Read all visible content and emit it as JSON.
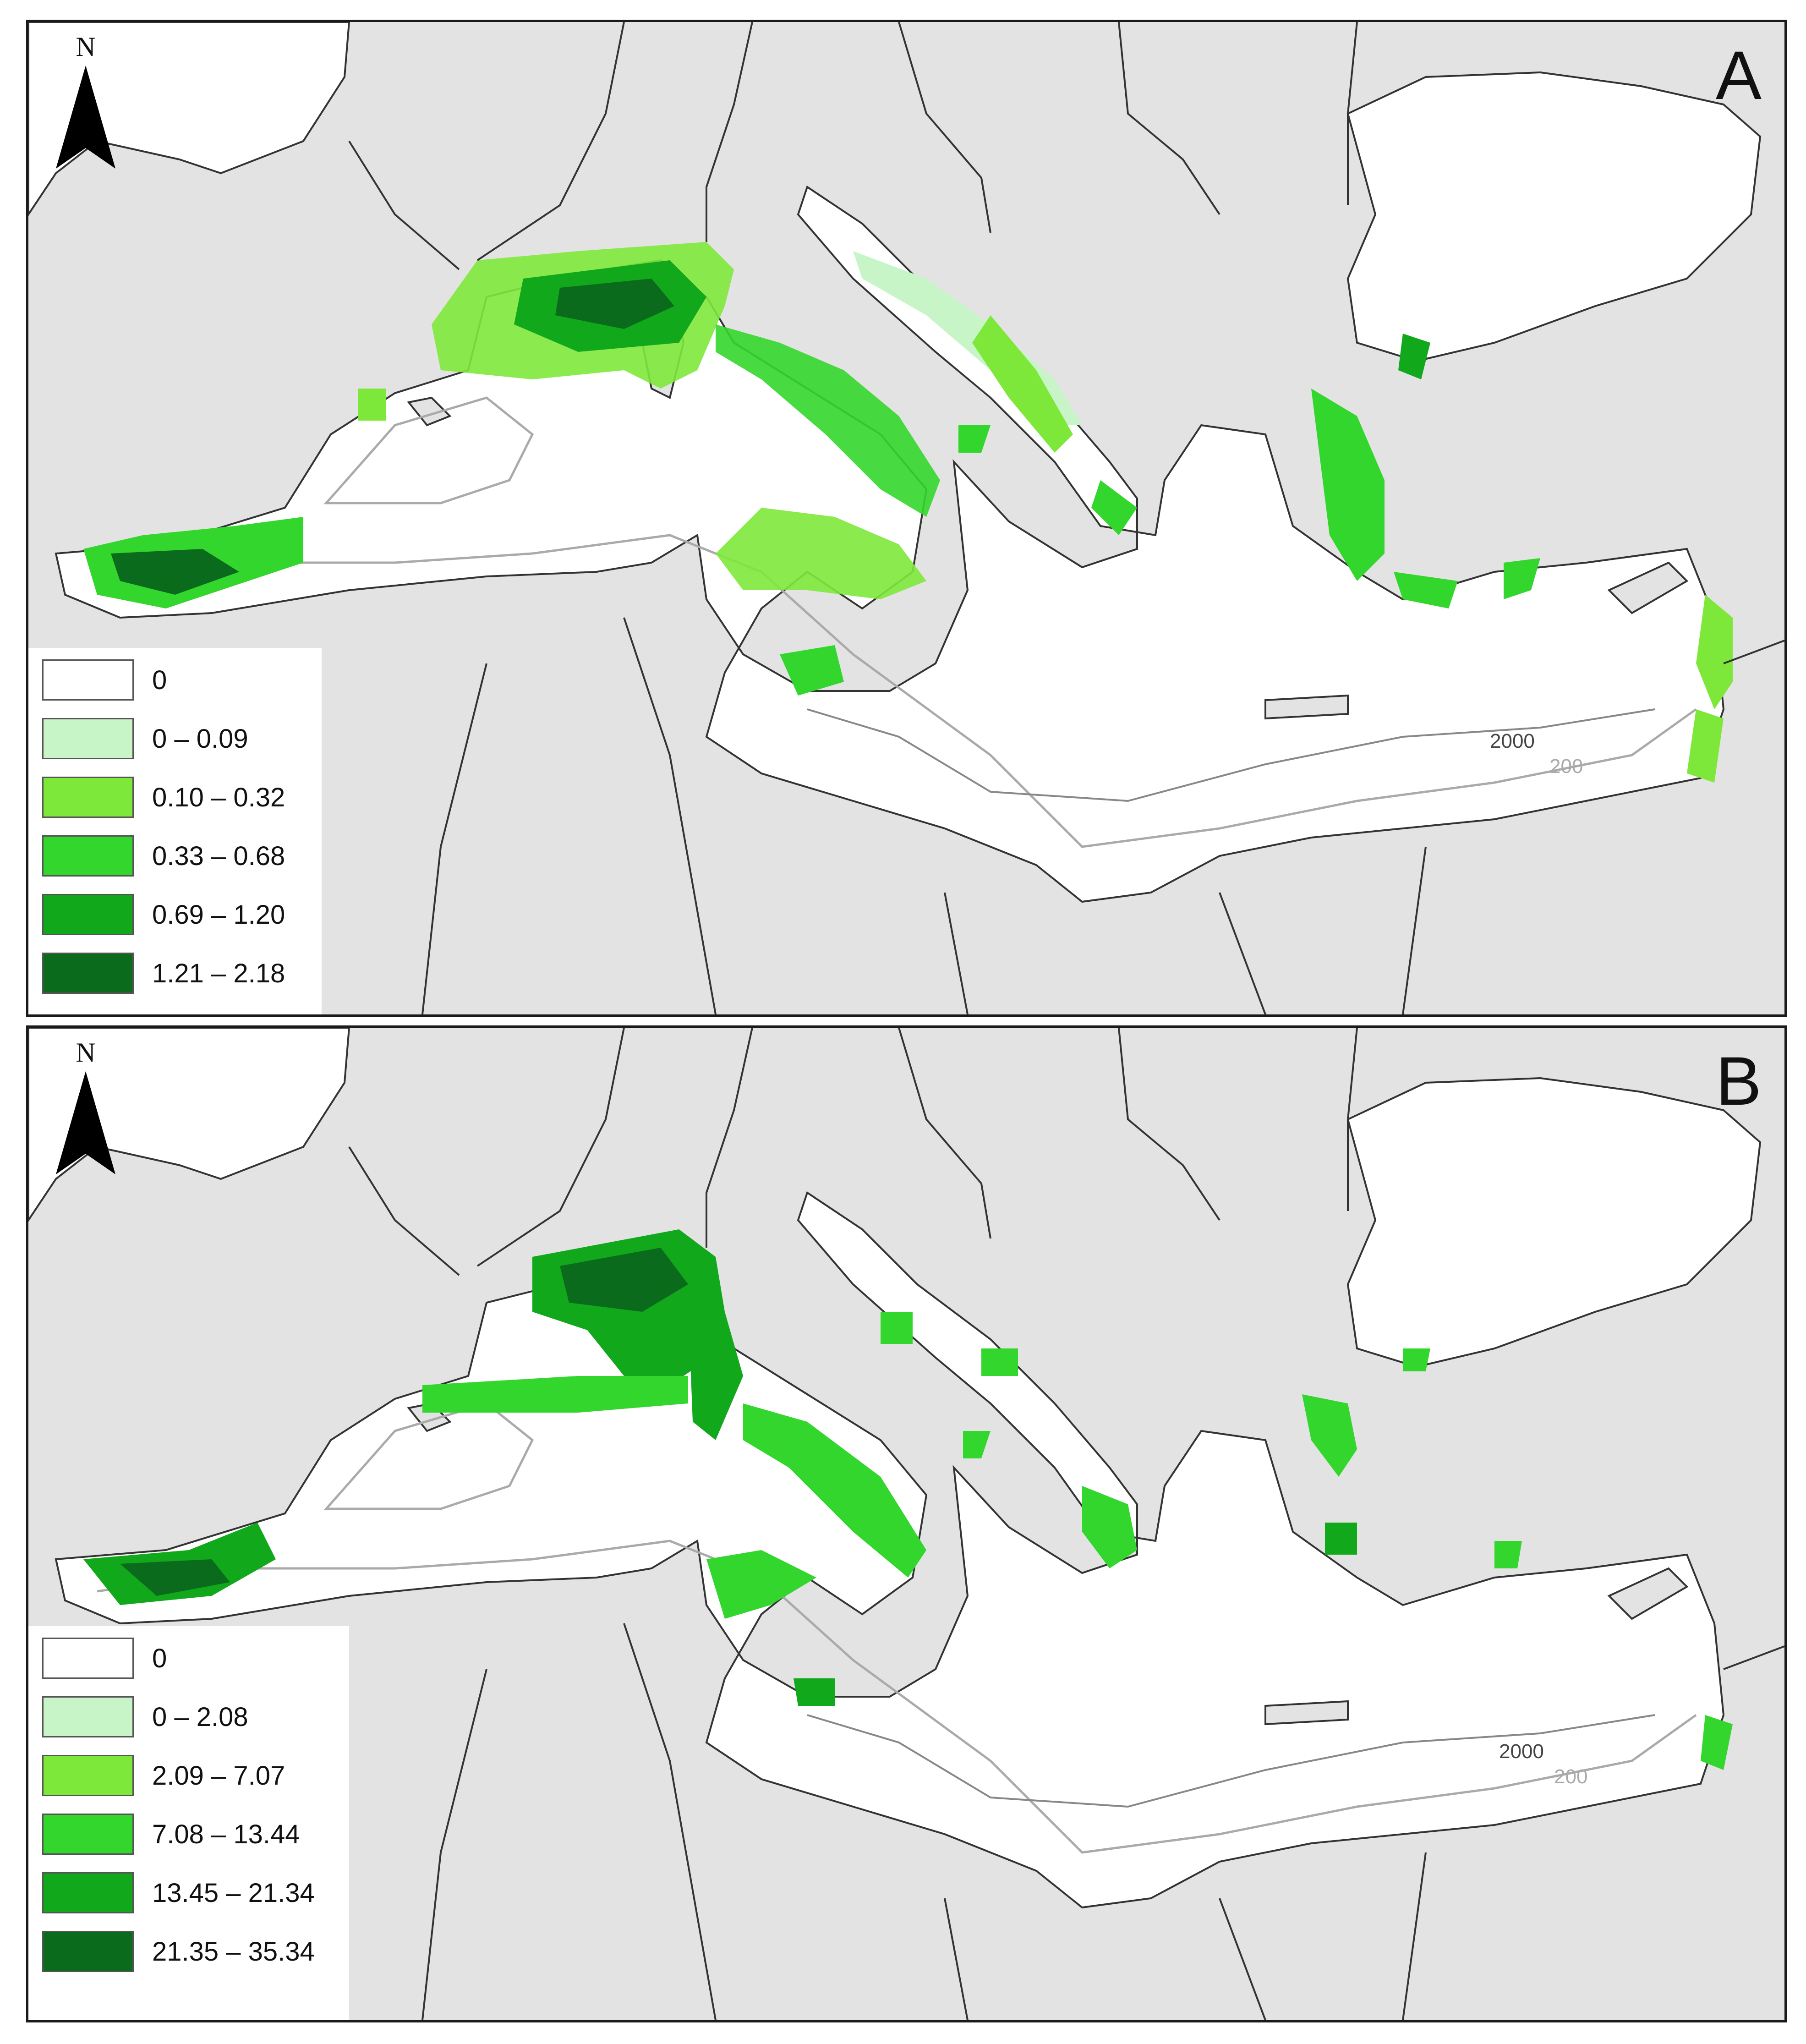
{
  "panels": [
    {
      "id": "A",
      "letter": "A",
      "north_label": "N",
      "legend": [
        {
          "label": "0",
          "color": "#ffffff"
        },
        {
          "label": "0 – 0.09",
          "color": "#c8f5c8"
        },
        {
          "label": "0.10 – 0.32",
          "color": "#7ee83a"
        },
        {
          "label": "0.33 – 0.68",
          "color": "#33d62c"
        },
        {
          "label": "0.69 – 1.20",
          "color": "#12a81b"
        },
        {
          "label": "1.21 – 2.18",
          "color": "#0a6b1c"
        }
      ],
      "contours": {
        "deep": "2000",
        "shelf": "200"
      }
    },
    {
      "id": "B",
      "letter": "B",
      "north_label": "N",
      "legend": [
        {
          "label": "0",
          "color": "#ffffff"
        },
        {
          "label": "0 – 2.08",
          "color": "#c8f5c8"
        },
        {
          "label": "2.09 – 7.07",
          "color": "#7ee83a"
        },
        {
          "label": "7.08 – 13.44",
          "color": "#33d62c"
        },
        {
          "label": "13.45 – 21.34",
          "color": "#12a81b"
        },
        {
          "label": "21.35 – 35.34",
          "color": "#0a6b1c"
        }
      ],
      "contours": {
        "deep": "2000",
        "shelf": "200"
      }
    }
  ],
  "colors": {
    "land": "#e3e3e3",
    "sea": "#ffffff",
    "border": "#333333",
    "contour_deep": "#444444",
    "contour_shelf": "#aaaaaa"
  }
}
